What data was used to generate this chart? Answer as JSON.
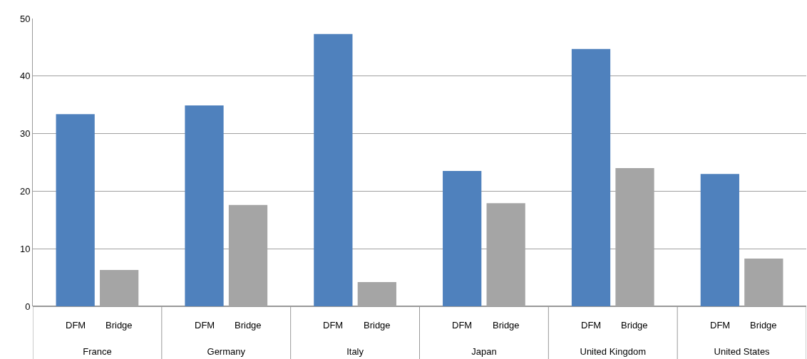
{
  "chart_data": {
    "type": "bar",
    "categories": [
      "France",
      "Germany",
      "Italy",
      "Japan",
      "United Kingdom",
      "United States"
    ],
    "series": [
      {
        "name": "DFM",
        "color": "#4f81bd",
        "values": [
          33.4,
          34.9,
          47.3,
          23.5,
          44.7,
          23.0
        ]
      },
      {
        "name": "Bridge",
        "color": "#a5a5a5",
        "values": [
          6.3,
          17.6,
          4.2,
          17.9,
          24.0,
          8.3
        ]
      }
    ],
    "ylim": [
      0,
      50
    ],
    "yticks": [
      0,
      10,
      20,
      30,
      40,
      50
    ],
    "grid": "y",
    "legend": false
  }
}
